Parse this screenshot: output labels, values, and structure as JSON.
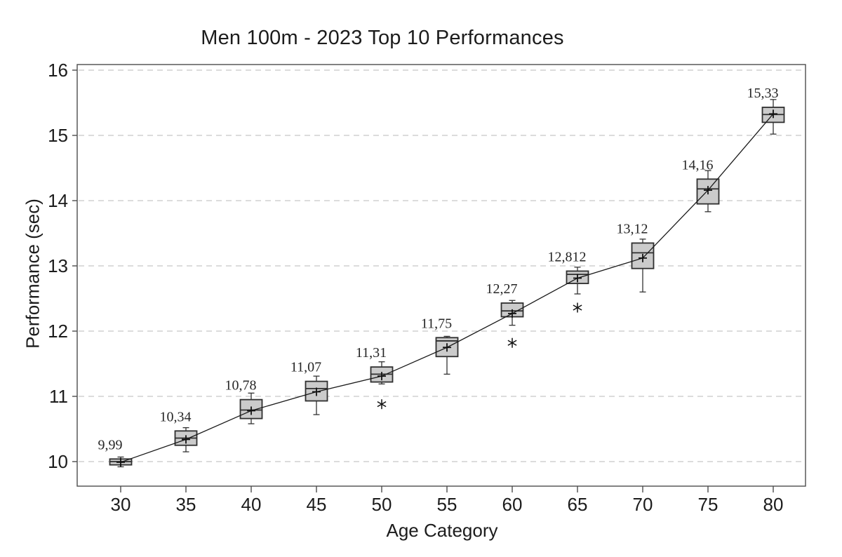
{
  "chart_data": {
    "type": "boxplot",
    "title": "Men 100m - 2023 Top 10 Performances",
    "xlabel": "Age Category",
    "ylabel": "Performance (sec)",
    "categories": [
      30,
      35,
      40,
      45,
      50,
      55,
      60,
      65,
      70,
      75,
      80
    ],
    "x_ticks": [
      "30",
      "35",
      "40",
      "45",
      "50",
      "55",
      "60",
      "65",
      "70",
      "75",
      "80"
    ],
    "y_ticks": [
      10,
      11,
      12,
      13,
      14,
      15,
      16
    ],
    "ylim": [
      9.62,
      16.09
    ],
    "grid": {
      "horizontal": true,
      "style": "dashed"
    },
    "legend": "none",
    "mean_connecting_line": true,
    "mean_marker": "plus-cross",
    "outlier_marker": "asterisk",
    "boxes": [
      {
        "age": 30,
        "whisker_low": 9.92,
        "q1": 9.95,
        "median": 10.0,
        "q3": 10.04,
        "whisker_high": 10.07,
        "mean": 9.99,
        "mean_label": "9,99",
        "outliers": []
      },
      {
        "age": 35,
        "whisker_low": 10.15,
        "q1": 10.25,
        "median": 10.36,
        "q3": 10.47,
        "whisker_high": 10.52,
        "mean": 10.34,
        "mean_label": "10,34",
        "outliers": []
      },
      {
        "age": 40,
        "whisker_low": 10.58,
        "q1": 10.66,
        "median": 10.79,
        "q3": 10.95,
        "whisker_high": 11.05,
        "mean": 10.78,
        "mean_label": "10,78",
        "outliers": []
      },
      {
        "age": 45,
        "whisker_low": 10.72,
        "q1": 10.93,
        "median": 11.12,
        "q3": 11.23,
        "whisker_high": 11.31,
        "mean": 11.07,
        "mean_label": "11,07",
        "outliers": []
      },
      {
        "age": 50,
        "whisker_low": 11.19,
        "q1": 11.22,
        "median": 11.34,
        "q3": 11.45,
        "whisker_high": 11.53,
        "mean": 11.31,
        "mean_label": "11,31",
        "outliers": [
          10.88
        ]
      },
      {
        "age": 55,
        "whisker_low": 11.34,
        "q1": 11.61,
        "median": 11.85,
        "q3": 11.9,
        "whisker_high": 11.92,
        "mean": 11.75,
        "mean_label": "11,75",
        "outliers": []
      },
      {
        "age": 60,
        "whisker_low": 12.09,
        "q1": 12.22,
        "median": 12.31,
        "q3": 12.43,
        "whisker_high": 12.47,
        "mean": 12.27,
        "mean_label": "12,27",
        "outliers": [
          11.82
        ]
      },
      {
        "age": 65,
        "whisker_low": 12.57,
        "q1": 12.73,
        "median": 12.87,
        "q3": 12.92,
        "whisker_high": 12.98,
        "mean": 12.812,
        "mean_label": "12,812",
        "outliers": [
          12.36
        ]
      },
      {
        "age": 70,
        "whisker_low": 12.6,
        "q1": 12.96,
        "median": 13.2,
        "q3": 13.35,
        "whisker_high": 13.41,
        "mean": 13.12,
        "mean_label": "13,12",
        "outliers": []
      },
      {
        "age": 75,
        "whisker_low": 13.83,
        "q1": 13.95,
        "median": 14.18,
        "q3": 14.33,
        "whisker_high": 14.46,
        "mean": 14.16,
        "mean_label": "14,16",
        "outliers": []
      },
      {
        "age": 80,
        "whisker_low": 15.02,
        "q1": 15.2,
        "median": 15.32,
        "q3": 15.43,
        "whisker_high": 15.55,
        "mean": 15.33,
        "mean_label": "15,33",
        "outliers": []
      }
    ],
    "colors": {
      "background": "#ffffff",
      "box_fill": "#cbcbcb",
      "box_stroke": "#2f2f2f",
      "median_line": "#2f2f2f",
      "mean_line": "#1a1a1a",
      "grid": "#c8c8c8",
      "axis": "#4d4d4d",
      "text": "#1c1c1c",
      "mean_label_text": "#262626"
    }
  }
}
